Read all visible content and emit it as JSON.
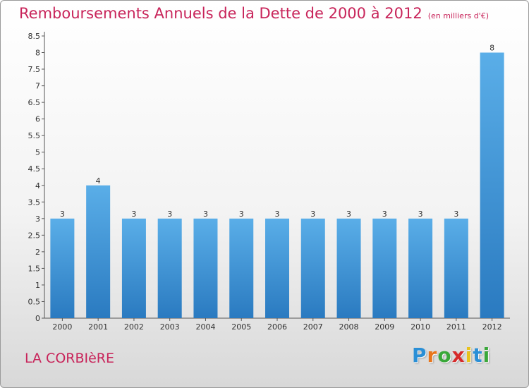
{
  "header": {
    "title": "Remboursements Annuels de la Dette de 2000 à 2012",
    "unit": "(en milliers d'€)"
  },
  "footer": {
    "commune": "LA CORBIèRE",
    "logo_letters": [
      "P",
      "r",
      "o",
      "x",
      "i",
      "t",
      "i"
    ],
    "logo_colors": [
      "#2a8fd6",
      "#e8761c",
      "#3aa83a",
      "#d62a2a",
      "#e8c21c",
      "#2a8fd6",
      "#3aa83a"
    ]
  },
  "colors": {
    "bar_top": "#5aaee8",
    "bar_bottom": "#2a7ac0",
    "title": "#c8245a"
  },
  "chart_data": {
    "type": "bar",
    "title": "Remboursements Annuels de la Dette de 2000 à 2012",
    "subtitle": "(en milliers d'€)",
    "categories": [
      "2000",
      "2001",
      "2002",
      "2003",
      "2004",
      "2005",
      "2006",
      "2007",
      "2008",
      "2009",
      "2010",
      "2011",
      "2012"
    ],
    "values": [
      3,
      4,
      3,
      3,
      3,
      3,
      3,
      3,
      3,
      3,
      3,
      3,
      8
    ],
    "data_labels": [
      "3",
      "4",
      "3",
      "3",
      "3",
      "3",
      "3",
      "3",
      "3",
      "3",
      "3",
      "3",
      "8"
    ],
    "ylim": [
      0,
      8.5
    ],
    "yticks": [
      "0",
      "0.5",
      "1",
      "1.5",
      "2",
      "2.5",
      "3",
      "3.5",
      "4",
      "4.5",
      "5",
      "5.5",
      "6",
      "6.5",
      "7",
      "7.5",
      "8",
      "8.5"
    ],
    "grid": false,
    "legend": "none"
  }
}
